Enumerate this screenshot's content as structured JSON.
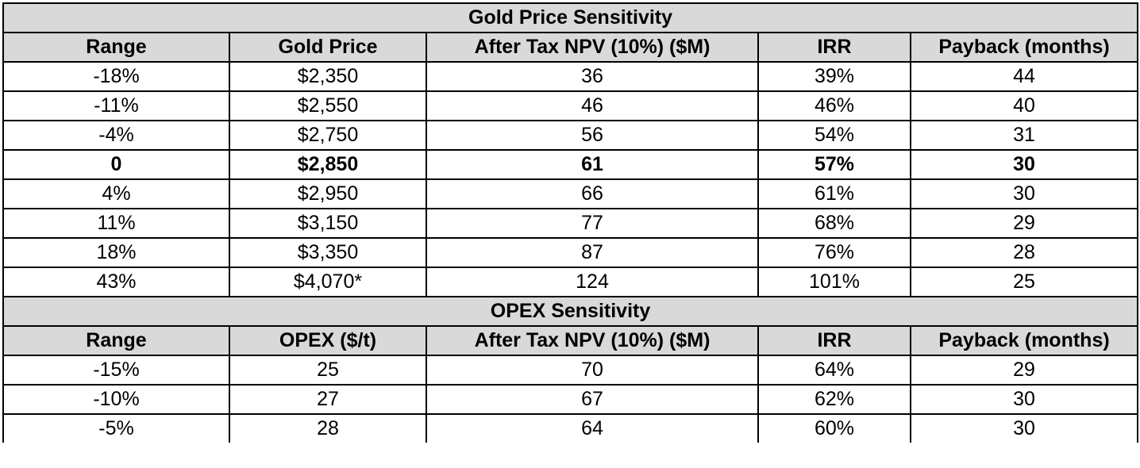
{
  "gold": {
    "title": "Gold Price Sensitivity",
    "headers": [
      "Range",
      "Gold Price",
      "After Tax NPV (10%) ($M)",
      "IRR",
      "Payback (months)"
    ],
    "rows": [
      [
        "-18%",
        "$2,350",
        "36",
        "39%",
        "44"
      ],
      [
        "-11%",
        "$2,550",
        "46",
        "46%",
        "40"
      ],
      [
        "-4%",
        "$2,750",
        "56",
        "54%",
        "31"
      ],
      [
        "0",
        "$2,850",
        "61",
        "57%",
        "30"
      ],
      [
        "4%",
        "$2,950",
        "66",
        "61%",
        "30"
      ],
      [
        "11%",
        "$3,150",
        "77",
        "68%",
        "29"
      ],
      [
        "18%",
        "$3,350",
        "87",
        "76%",
        "28"
      ],
      [
        "43%",
        "$4,070*",
        "124",
        "101%",
        "25"
      ]
    ]
  },
  "opex": {
    "title": "OPEX Sensitivity",
    "headers": [
      "Range",
      "OPEX ($/t)",
      "After Tax NPV (10%) ($M)",
      "IRR",
      "Payback (months)"
    ],
    "rows": [
      [
        "-15%",
        "25",
        "70",
        "64%",
        "29"
      ],
      [
        "-10%",
        "27",
        "67",
        "62%",
        "30"
      ],
      [
        "-5%",
        "28",
        "64",
        "60%",
        "30"
      ]
    ]
  }
}
